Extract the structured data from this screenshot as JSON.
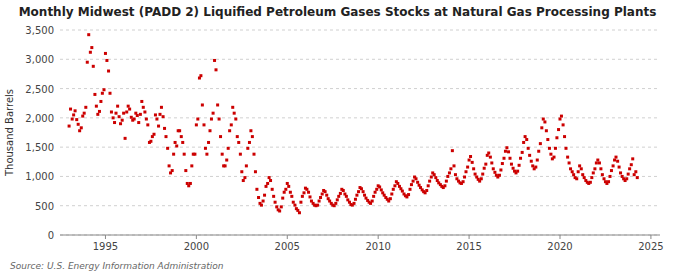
{
  "chart_data": {
    "type": "scatter",
    "title": "Monthly Midwest (PADD 2) Liquified Petroleum Gases Stocks at Natural Gas Processing Plants",
    "ylabel": "Thousand Barrels",
    "source": "Source: U.S. Energy Information Administration",
    "color": "#cc0000",
    "marker": "square",
    "grid": true,
    "xlim": [
      1992.5,
      2025.5
    ],
    "ylim": [
      0,
      3500
    ],
    "xticks": [
      1995,
      2000,
      2005,
      2010,
      2015,
      2020,
      2025
    ],
    "yticks": [
      0,
      500,
      {
        "value": 1000,
        "label": "1,000"
      },
      {
        "value": 1500,
        "label": "1,500"
      },
      {
        "value": 2000,
        "label": "2,000"
      },
      {
        "value": 2500,
        "label": "2,500"
      },
      {
        "value": 3000,
        "label": "3,000"
      },
      {
        "value": 3500,
        "label": "3,500"
      }
    ],
    "x": [
      1993.0,
      1993.08,
      1993.17,
      1993.25,
      1993.33,
      1993.42,
      1993.5,
      1993.58,
      1993.67,
      1993.75,
      1993.83,
      1993.92,
      1994.0,
      1994.08,
      1994.17,
      1994.25,
      1994.33,
      1994.42,
      1994.5,
      1994.58,
      1994.67,
      1994.75,
      1994.83,
      1994.92,
      1995.0,
      1995.08,
      1995.17,
      1995.25,
      1995.33,
      1995.42,
      1995.5,
      1995.58,
      1995.67,
      1995.75,
      1995.83,
      1995.92,
      1996.0,
      1996.08,
      1996.17,
      1996.25,
      1996.33,
      1996.42,
      1996.5,
      1996.58,
      1996.67,
      1996.75,
      1996.83,
      1996.92,
      1997.0,
      1997.08,
      1997.17,
      1997.25,
      1997.33,
      1997.42,
      1997.5,
      1997.58,
      1997.67,
      1997.75,
      1997.83,
      1997.92,
      1998.0,
      1998.08,
      1998.17,
      1998.25,
      1998.33,
      1998.42,
      1998.5,
      1998.58,
      1998.67,
      1998.75,
      1998.83,
      1998.92,
      1999.0,
      1999.08,
      1999.17,
      1999.25,
      1999.33,
      1999.42,
      1999.5,
      1999.58,
      1999.67,
      1999.75,
      1999.83,
      1999.92,
      2000.0,
      2000.08,
      2000.17,
      2000.25,
      2000.33,
      2000.42,
      2000.5,
      2000.58,
      2000.67,
      2000.75,
      2000.83,
      2000.92,
      2001.0,
      2001.08,
      2001.17,
      2001.25,
      2001.33,
      2001.42,
      2001.5,
      2001.58,
      2001.67,
      2001.75,
      2001.83,
      2001.92,
      2002.0,
      2002.08,
      2002.17,
      2002.25,
      2002.33,
      2002.42,
      2002.5,
      2002.58,
      2002.67,
      2002.75,
      2002.83,
      2002.92,
      2003.0,
      2003.08,
      2003.17,
      2003.25,
      2003.33,
      2003.42,
      2003.5,
      2003.58,
      2003.67,
      2003.75,
      2003.83,
      2003.92,
      2004.0,
      2004.08,
      2004.17,
      2004.25,
      2004.33,
      2004.42,
      2004.5,
      2004.58,
      2004.67,
      2004.75,
      2004.83,
      2004.92,
      2005.0,
      2005.08,
      2005.17,
      2005.25,
      2005.33,
      2005.42,
      2005.5,
      2005.58,
      2005.67,
      2005.75,
      2005.83,
      2005.92,
      2006.0,
      2006.08,
      2006.17,
      2006.25,
      2006.33,
      2006.42,
      2006.5,
      2006.58,
      2006.67,
      2006.75,
      2006.83,
      2006.92,
      2007.0,
      2007.08,
      2007.17,
      2007.25,
      2007.33,
      2007.42,
      2007.5,
      2007.58,
      2007.67,
      2007.75,
      2007.83,
      2007.92,
      2008.0,
      2008.08,
      2008.17,
      2008.25,
      2008.33,
      2008.42,
      2008.5,
      2008.58,
      2008.67,
      2008.75,
      2008.83,
      2008.92,
      2009.0,
      2009.08,
      2009.17,
      2009.25,
      2009.33,
      2009.42,
      2009.5,
      2009.58,
      2009.67,
      2009.75,
      2009.83,
      2009.92,
      2010.0,
      2010.08,
      2010.17,
      2010.25,
      2010.33,
      2010.42,
      2010.5,
      2010.58,
      2010.67,
      2010.75,
      2010.83,
      2010.92,
      2011.0,
      2011.08,
      2011.17,
      2011.25,
      2011.33,
      2011.42,
      2011.5,
      2011.58,
      2011.67,
      2011.75,
      2011.83,
      2011.92,
      2012.0,
      2012.08,
      2012.17,
      2012.25,
      2012.33,
      2012.42,
      2012.5,
      2012.58,
      2012.67,
      2012.75,
      2012.83,
      2012.92,
      2013.0,
      2013.08,
      2013.17,
      2013.25,
      2013.33,
      2013.42,
      2013.5,
      2013.58,
      2013.67,
      2013.75,
      2013.83,
      2013.92,
      2014.0,
      2014.08,
      2014.17,
      2014.25,
      2014.33,
      2014.42,
      2014.5,
      2014.58,
      2014.67,
      2014.75,
      2014.83,
      2014.92,
      2015.0,
      2015.08,
      2015.17,
      2015.25,
      2015.33,
      2015.42,
      2015.5,
      2015.58,
      2015.67,
      2015.75,
      2015.83,
      2015.92,
      2016.0,
      2016.08,
      2016.17,
      2016.25,
      2016.33,
      2016.42,
      2016.5,
      2016.58,
      2016.67,
      2016.75,
      2016.83,
      2016.92,
      2017.0,
      2017.08,
      2017.17,
      2017.25,
      2017.33,
      2017.42,
      2017.5,
      2017.58,
      2017.67,
      2017.75,
      2017.83,
      2017.92,
      2018.0,
      2018.08,
      2018.17,
      2018.25,
      2018.33,
      2018.42,
      2018.5,
      2018.58,
      2018.67,
      2018.75,
      2018.83,
      2018.92,
      2019.0,
      2019.08,
      2019.17,
      2019.25,
      2019.33,
      2019.42,
      2019.5,
      2019.58,
      2019.67,
      2019.75,
      2019.83,
      2019.92,
      2020.0,
      2020.08,
      2020.17,
      2020.25,
      2020.33,
      2020.42,
      2020.5,
      2020.58,
      2020.67,
      2020.75,
      2020.83,
      2020.92,
      2021.0,
      2021.08,
      2021.17,
      2021.25,
      2021.33,
      2021.42,
      2021.5,
      2021.58,
      2021.67,
      2021.75,
      2021.83,
      2021.92,
      2022.0,
      2022.08,
      2022.17,
      2022.25,
      2022.33,
      2022.42,
      2022.5,
      2022.58,
      2022.67,
      2022.75,
      2022.83,
      2022.92,
      2023.0,
      2023.08,
      2023.17,
      2023.25,
      2023.33,
      2023.42,
      2023.5,
      2023.58,
      2023.67,
      2023.75,
      2023.83,
      2023.92,
      2024.0,
      2024.08,
      2024.17,
      2024.25
    ],
    "values": [
      1860,
      2150,
      1980,
      2050,
      2120,
      1970,
      1890,
      1780,
      1830,
      2030,
      2080,
      2180,
      2950,
      3420,
      3120,
      3200,
      2880,
      2400,
      2200,
      2060,
      2110,
      2280,
      2420,
      2480,
      3100,
      2980,
      2800,
      2420,
      2100,
      2000,
      1920,
      2080,
      2200,
      2020,
      1900,
      1960,
      2080,
      1650,
      2100,
      2200,
      2150,
      2010,
      1960,
      1980,
      2080,
      2040,
      1920,
      2060,
      2280,
      2180,
      2100,
      1980,
      1880,
      1580,
      1600,
      1680,
      1720,
      2050,
      1980,
      1860,
      2060,
      2180,
      2020,
      1820,
      1680,
      1480,
      1180,
      1060,
      1100,
      1380,
      1580,
      1520,
      1780,
      1780,
      1680,
      1580,
      1380,
      1100,
      880,
      840,
      880,
      1180,
      1380,
      1380,
      1880,
      1980,
      2680,
      2720,
      2220,
      1880,
      1480,
      1380,
      1580,
      1780,
      1980,
      2080,
      2980,
      2820,
      2220,
      1980,
      1680,
      1380,
      1180,
      1180,
      1280,
      1480,
      1780,
      1880,
      2180,
      2080,
      1980,
      1680,
      1580,
      1380,
      1080,
      930,
      980,
      1180,
      1480,
      1580,
      1780,
      1680,
      1380,
      1080,
      780,
      640,
      540,
      510,
      580,
      680,
      830,
      880,
      980,
      930,
      780,
      660,
      560,
      480,
      430,
      410,
      480,
      630,
      730,
      780,
      880,
      830,
      730,
      660,
      560,
      510,
      450,
      420,
      380,
      560,
      660,
      720,
      800,
      780,
      730,
      650,
      580,
      540,
      510,
      500,
      510,
      580,
      640,
      700,
      760,
      740,
      680,
      620,
      580,
      540,
      510,
      500,
      540,
      600,
      660,
      710,
      780,
      760,
      700,
      660,
      600,
      560,
      520,
      510,
      540,
      610,
      680,
      740,
      810,
      790,
      740,
      680,
      630,
      590,
      560,
      540,
      580,
      660,
      730,
      780,
      840,
      820,
      770,
      720,
      680,
      640,
      610,
      580,
      620,
      700,
      780,
      840,
      910,
      880,
      830,
      790,
      750,
      700,
      670,
      650,
      690,
      780,
      860,
      920,
      990,
      960,
      900,
      850,
      810,
      770,
      740,
      720,
      760,
      840,
      920,
      990,
      1060,
      1030,
      980,
      930,
      890,
      860,
      830,
      810,
      840,
      920,
      1000,
      1060,
      1130,
      1440,
      1180,
      1030,
      960,
      920,
      890,
      880,
      910,
      990,
      1080,
      1160,
      1280,
      1340,
      1240,
      1130,
      1040,
      990,
      950,
      920,
      960,
      1040,
      1140,
      1210,
      1360,
      1400,
      1330,
      1230,
      1130,
      1070,
      1020,
      990,
      1020,
      1110,
      1220,
      1310,
      1430,
      1490,
      1420,
      1310,
      1210,
      1140,
      1090,
      1060,
      1090,
      1190,
      1310,
      1410,
      1580,
      1680,
      1630,
      1480,
      1360,
      1260,
      1180,
      1130,
      1160,
      1280,
      1430,
      1560,
      1830,
      1980,
      1930,
      1780,
      1630,
      1480,
      1380,
      1300,
      1330,
      1480,
      1660,
      1800,
      1980,
      2030,
      1880,
      1680,
      1480,
      1330,
      1230,
      1130,
      1080,
      1030,
      980,
      960,
      1080,
      1180,
      1130,
      1030,
      980,
      930,
      900,
      880,
      900,
      980,
      1060,
      1130,
      1230,
      1280,
      1230,
      1130,
      1030,
      960,
      910,
      880,
      910,
      1000,
      1100,
      1180,
      1280,
      1330,
      1260,
      1160,
      1060,
      1000,
      960,
      930,
      960,
      1040,
      1130,
      1200,
      1300,
      1030,
      1080,
      980
    ]
  }
}
